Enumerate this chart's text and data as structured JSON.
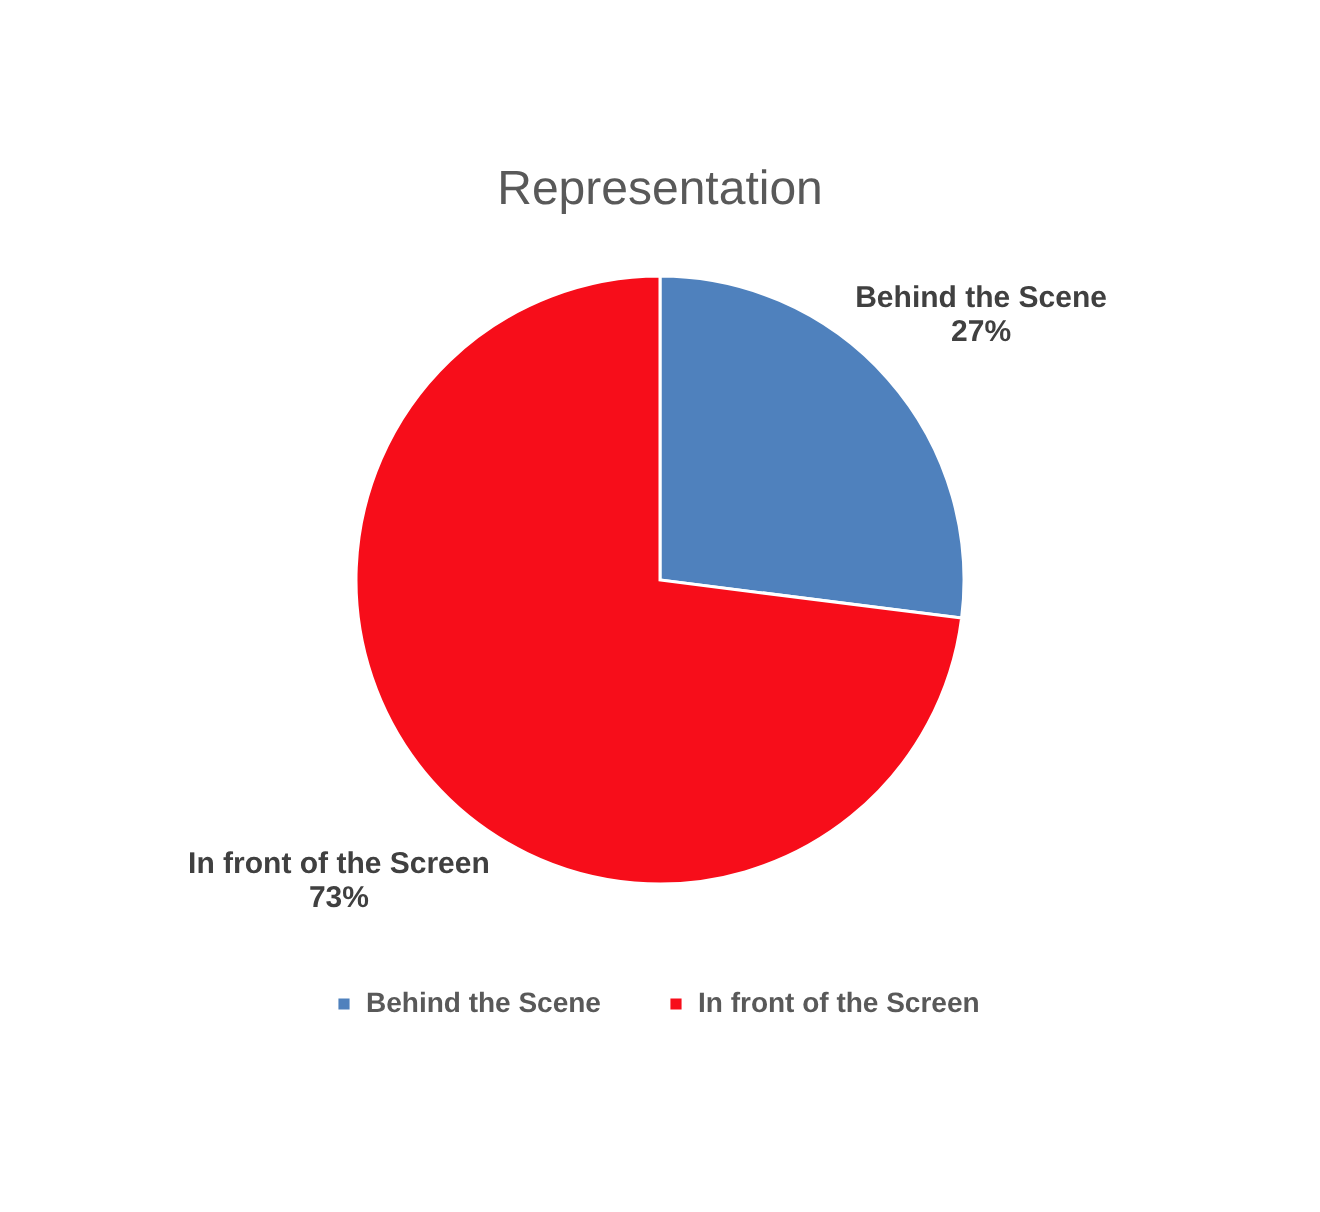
{
  "chart_data": {
    "type": "pie",
    "title": "Representation",
    "categories": [
      "Behind the Scene",
      "In front of the Screen"
    ],
    "values": [
      27,
      73
    ],
    "colors": [
      "#4f81bd",
      "#f70d1a"
    ],
    "value_labels": [
      "27%",
      "73%"
    ],
    "legend": "bottom"
  }
}
